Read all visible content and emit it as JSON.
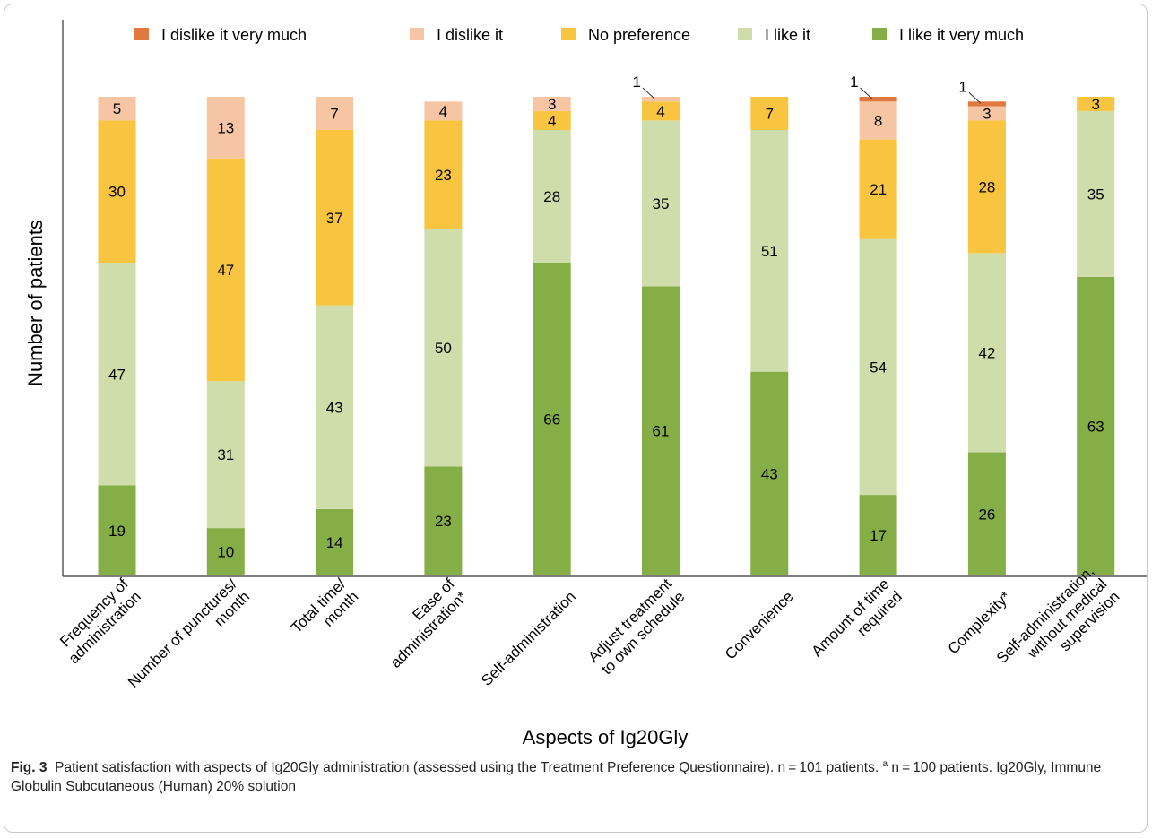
{
  "chart_data": {
    "type": "bar",
    "stacked": true,
    "categories": [
      [
        "Frequency of",
        "administration"
      ],
      [
        "Number of punctures/",
        "month"
      ],
      [
        "Total time/",
        "month"
      ],
      [
        "Ease of",
        "administration*"
      ],
      [
        "Self-administration"
      ],
      [
        "Adjust treatment",
        "to own schedule"
      ],
      [
        "Convenience"
      ],
      [
        "Amount of time",
        "required"
      ],
      [
        "Complexity*"
      ],
      [
        "Self-administration,",
        "without medical",
        "supervision"
      ]
    ],
    "series": [
      {
        "name": "I like it very much",
        "color": "#86ae47",
        "values": [
          19,
          10,
          14,
          23,
          66,
          61,
          43,
          17,
          26,
          63
        ]
      },
      {
        "name": "I like it",
        "color": "#cfddab",
        "values": [
          47,
          31,
          43,
          50,
          28,
          35,
          51,
          54,
          42,
          35
        ]
      },
      {
        "name": "No preference",
        "color": "#f9c43f",
        "values": [
          30,
          47,
          37,
          23,
          4,
          4,
          7,
          21,
          28,
          3
        ]
      },
      {
        "name": "I dislike it",
        "color": "#f6c6a4",
        "values": [
          5,
          13,
          7,
          4,
          3,
          1,
          0,
          8,
          3,
          0
        ]
      },
      {
        "name": "I dislike it very much",
        "color": "#e0793f",
        "values": [
          0,
          0,
          0,
          0,
          0,
          0,
          0,
          1,
          1,
          0
        ]
      }
    ],
    "legend_order": [
      "I dislike it very much",
      "I dislike it",
      "No preference",
      "I like it",
      "I like it very much"
    ],
    "legend_position": "top",
    "callouts": [
      {
        "category_index": 5,
        "series": "I dislike it",
        "text": "1"
      },
      {
        "category_index": 7,
        "series": "I dislike it very much",
        "text": "1"
      },
      {
        "category_index": 8,
        "series": "I dislike it very much",
        "text": "1"
      }
    ],
    "xlabel": "Aspects of Ig20Gly",
    "ylabel": "Number of patients",
    "ylim": [
      0,
      101
    ],
    "grid": false
  },
  "caption": {
    "label": "Fig. 3",
    "text_before": "Patient satisfaction with aspects of Ig20Gly administration (assessed using the Treatment Preference Questionnaire). n = 101 patients.",
    "superscript": "a",
    "text_after": "n = 100 patients. Ig20Gly, Immune Globulin Subcutaneous (Human) 20% solution"
  }
}
